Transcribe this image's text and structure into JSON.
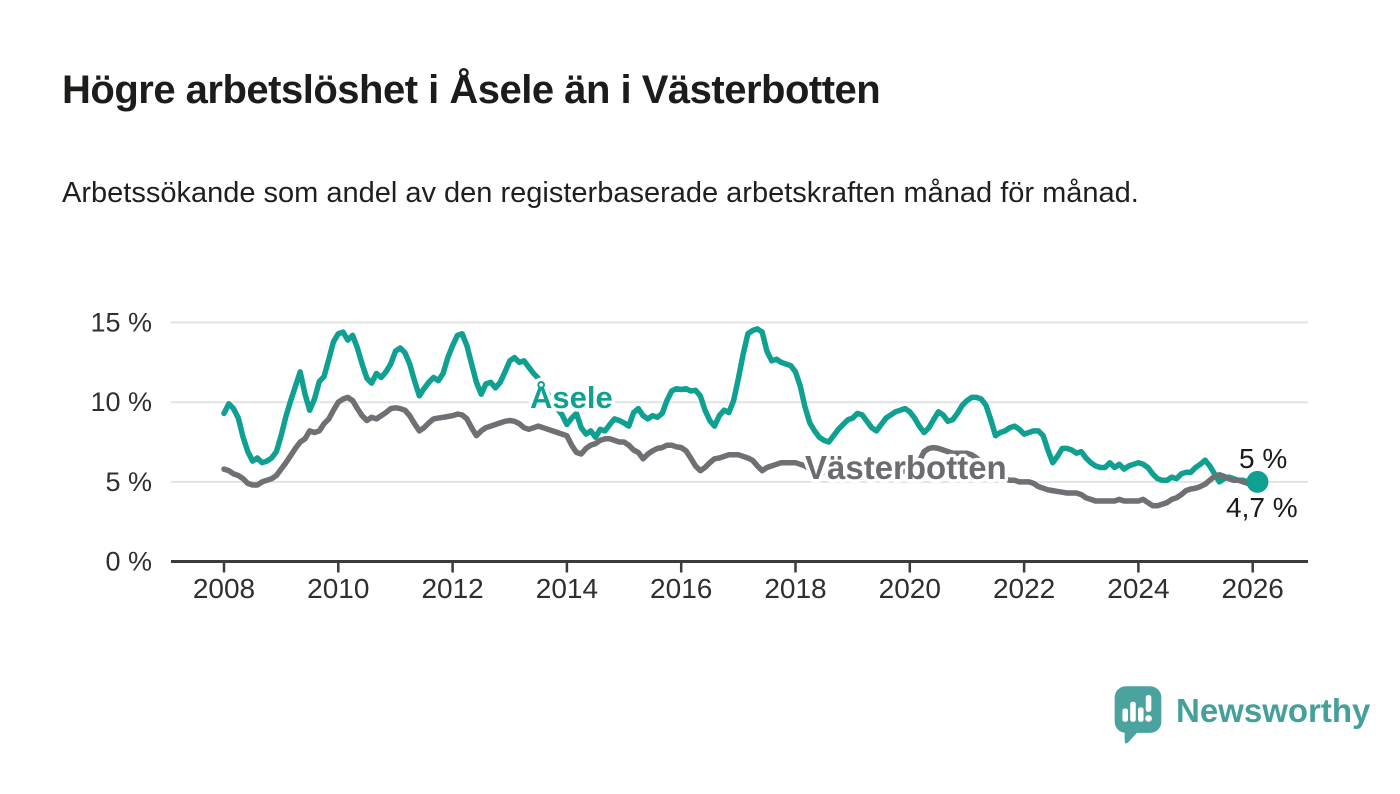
{
  "title": "Högre arbetslöshet i Åsele än i Västerbotten",
  "subtitle": "Arbetssökande som andel av den registerbaserade arbetskraften månad för månad.",
  "branding": {
    "logo_text": "Newsworthy",
    "logo_color": "#45a09b",
    "logo_icon": "bar-chart-speech-bubble"
  },
  "chart_data": {
    "type": "line",
    "title": "Högre arbetslöshet i Åsele än i Västerbotten",
    "xlabel": "",
    "ylabel": "",
    "x_start_year": 2008,
    "x_months_per_point": 1,
    "x_end_label": "2026",
    "ylim": [
      0,
      16.5
    ],
    "grid": true,
    "legend_position": "inline-labels",
    "x_ticks": [
      "2008",
      "2010",
      "2012",
      "2014",
      "2016",
      "2018",
      "2020",
      "2022",
      "2024",
      "2026"
    ],
    "y_ticks": [
      {
        "value": 0,
        "label": "0 %"
      },
      {
        "value": 5,
        "label": "5 %"
      },
      {
        "value": 10,
        "label": "10 %"
      },
      {
        "value": 15,
        "label": "15 %"
      }
    ],
    "series": [
      {
        "name": "Åsele",
        "color": "#10A092",
        "final_value_label": "5 %",
        "values": [
          9.3,
          9.9,
          9.6,
          9.0,
          7.8,
          6.9,
          6.3,
          6.5,
          6.2,
          6.3,
          6.5,
          6.9,
          7.9,
          9.1,
          10.1,
          11.0,
          11.9,
          10.5,
          9.5,
          10.2,
          11.3,
          11.6,
          12.7,
          13.8,
          14.3,
          14.4,
          13.9,
          14.2,
          13.4,
          12.4,
          11.5,
          11.2,
          11.8,
          11.55,
          11.9,
          12.4,
          13.2,
          13.4,
          13.1,
          12.4,
          11.35,
          10.4,
          10.85,
          11.25,
          11.55,
          11.35,
          11.8,
          12.8,
          13.55,
          14.2,
          14.3,
          13.55,
          12.4,
          11.25,
          10.5,
          11.15,
          11.25,
          10.9,
          11.25,
          11.9,
          12.6,
          12.8,
          12.5,
          12.6,
          12.2,
          11.8,
          11.5,
          11.0,
          10.5,
          10.0,
          9.6,
          9.2,
          8.6,
          9.0,
          9.3,
          8.4,
          8.0,
          8.2,
          7.8,
          8.3,
          8.2,
          8.6,
          8.95,
          8.85,
          8.7,
          8.5,
          9.35,
          9.6,
          9.15,
          8.95,
          9.15,
          9.05,
          9.3,
          10.1,
          10.7,
          10.85,
          10.8,
          10.85,
          10.7,
          10.75,
          10.4,
          9.5,
          8.85,
          8.5,
          9.15,
          9.5,
          9.35,
          10.1,
          11.5,
          13.0,
          14.3,
          14.5,
          14.6,
          14.4,
          13.2,
          12.6,
          12.7,
          12.5,
          12.4,
          12.3,
          11.9,
          11.0,
          9.7,
          8.7,
          8.2,
          7.8,
          7.6,
          7.5,
          7.9,
          8.3,
          8.6,
          8.9,
          9.0,
          9.3,
          9.2,
          8.8,
          8.4,
          8.2,
          8.6,
          9.0,
          9.2,
          9.4,
          9.5,
          9.6,
          9.4,
          9.0,
          8.5,
          8.1,
          8.4,
          8.9,
          9.4,
          9.2,
          8.8,
          8.9,
          9.3,
          9.8,
          10.1,
          10.3,
          10.3,
          10.2,
          9.8,
          8.9,
          7.9,
          8.1,
          8.2,
          8.4,
          8.5,
          8.3,
          8.0,
          8.1,
          8.2,
          8.2,
          7.9,
          7.0,
          6.2,
          6.6,
          7.1,
          7.1,
          7.0,
          6.8,
          6.9,
          6.5,
          6.2,
          6.0,
          5.9,
          5.9,
          6.2,
          5.9,
          6.1,
          5.8,
          6.0,
          6.1,
          6.2,
          6.1,
          5.9,
          5.5,
          5.2,
          5.1,
          5.1,
          5.3,
          5.2,
          5.5,
          5.6,
          5.6,
          5.9,
          6.1,
          6.35,
          6.0,
          5.5,
          5.0,
          5.2,
          5.3,
          5.2,
          5.1,
          5.1,
          5.0,
          5.0,
          5.0
        ]
      },
      {
        "name": "Västerbotten",
        "color": "#6F6F74",
        "final_value_label": "4,7 %",
        "values": [
          5.8,
          5.7,
          5.5,
          5.4,
          5.2,
          4.9,
          4.8,
          4.8,
          5.0,
          5.1,
          5.2,
          5.4,
          5.8,
          6.2,
          6.65,
          7.1,
          7.5,
          7.7,
          8.2,
          8.1,
          8.2,
          8.65,
          8.95,
          9.5,
          10.0,
          10.2,
          10.3,
          10.1,
          9.6,
          9.15,
          8.85,
          9.05,
          8.95,
          9.15,
          9.35,
          9.6,
          9.65,
          9.6,
          9.5,
          9.15,
          8.65,
          8.2,
          8.4,
          8.7,
          8.95,
          9.0,
          9.05,
          9.1,
          9.15,
          9.25,
          9.2,
          8.95,
          8.4,
          7.9,
          8.2,
          8.4,
          8.5,
          8.6,
          8.7,
          8.8,
          8.85,
          8.8,
          8.65,
          8.4,
          8.3,
          8.4,
          8.5,
          8.4,
          8.3,
          8.2,
          8.1,
          8.0,
          7.9,
          7.3,
          6.85,
          6.75,
          7.1,
          7.3,
          7.4,
          7.6,
          7.7,
          7.7,
          7.6,
          7.5,
          7.5,
          7.3,
          7.0,
          6.85,
          6.45,
          6.75,
          6.95,
          7.1,
          7.15,
          7.3,
          7.3,
          7.2,
          7.15,
          6.95,
          6.5,
          6.0,
          5.7,
          5.9,
          6.2,
          6.45,
          6.5,
          6.6,
          6.7,
          6.7,
          6.7,
          6.6,
          6.5,
          6.35,
          6.0,
          5.7,
          5.9,
          6.0,
          6.1,
          6.2,
          6.2,
          6.2,
          6.2,
          6.1,
          6.0,
          5.8,
          5.6,
          5.5,
          5.6,
          5.7,
          5.8,
          5.8,
          5.8,
          5.8,
          5.8,
          5.7,
          5.6,
          5.4,
          5.3,
          5.2,
          5.3,
          5.4,
          5.5,
          5.5,
          5.6,
          5.7,
          5.8,
          5.9,
          6.3,
          6.9,
          7.1,
          7.15,
          7.1,
          7.0,
          6.9,
          6.8,
          6.8,
          6.8,
          6.8,
          6.7,
          6.5,
          6.2,
          6.0,
          5.8,
          5.5,
          5.3,
          5.2,
          5.1,
          5.1,
          5.0,
          5.0,
          5.0,
          4.9,
          4.7,
          4.6,
          4.5,
          4.45,
          4.4,
          4.35,
          4.3,
          4.3,
          4.3,
          4.2,
          4.0,
          3.9,
          3.8,
          3.8,
          3.8,
          3.8,
          3.8,
          3.9,
          3.8,
          3.8,
          3.8,
          3.8,
          3.9,
          3.7,
          3.5,
          3.5,
          3.6,
          3.7,
          3.9,
          4.0,
          4.2,
          4.45,
          4.55,
          4.6,
          4.7,
          4.85,
          5.1,
          5.35,
          5.45,
          5.35,
          5.2,
          5.1,
          5.1,
          5.0,
          4.9,
          4.8,
          4.7
        ]
      }
    ]
  }
}
